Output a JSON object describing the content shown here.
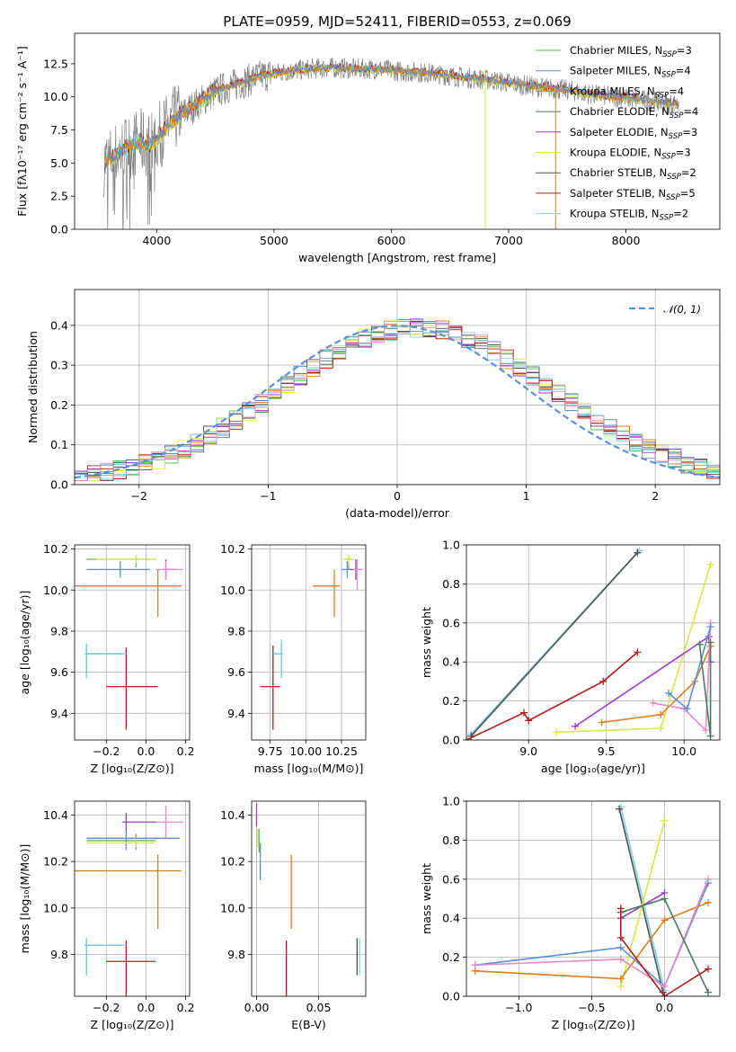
{
  "colors": {
    "Chabrier MILES": "#5cb85c",
    "Salpeter MILES": "#5b8fd6",
    "Kroupa MILES": "#e07b1a",
    "Chabrier ELODIE": "#4a7a60",
    "Salpeter ELODIE": "#9a3fc0",
    "Kroupa ELODIE": "#d8e64a",
    "Chabrier STELIB": "#505050",
    "Salpeter STELIB": "#b01e1e",
    "Kroupa STELIB": "#7fd2dc",
    "pink": "#e58ac6",
    "data": "#808080",
    "gauss": "#5b8fd6"
  },
  "chart_data": [
    {
      "id": "spectrum",
      "type": "line",
      "title": "PLATE=0959, MJD=52411, FIBERID=0553, z=0.069",
      "xlabel": "wavelength [Angstrom, rest frame]",
      "ylabel": "Flux [fλ10⁻¹⁷ erg cm⁻² s⁻¹ A⁻¹]",
      "xlim": [
        3300,
        8800
      ],
      "ylim": [
        0,
        14.8
      ],
      "xticks": [
        "4000",
        "5000",
        "6000",
        "7000",
        "8000"
      ],
      "yticks": [
        "0.0",
        "2.5",
        "5.0",
        "7.5",
        "10.0",
        "12.5"
      ],
      "legend": [
        {
          "label": "Chabrier MILES, N",
          "sub": "SSP",
          "tail": "=3"
        },
        {
          "label": "Salpeter MILES, N",
          "sub": "SSP",
          "tail": "=4"
        },
        {
          "label": "Kroupa MILES, N",
          "sub": "SSP",
          "tail": "=4"
        },
        {
          "label": "Chabrier ELODIE, N",
          "sub": "SSP",
          "tail": "=4"
        },
        {
          "label": "Salpeter ELODIE, N",
          "sub": "SSP",
          "tail": "=3"
        },
        {
          "label": "Kroupa ELODIE, N",
          "sub": "SSP",
          "tail": "=3"
        },
        {
          "label": "Chabrier STELIB, N",
          "sub": "SSP",
          "tail": "=2"
        },
        {
          "label": "Salpeter STELIB, N",
          "sub": "SSP",
          "tail": "=5"
        },
        {
          "label": "Kroupa STELIB, N",
          "sub": "SSP",
          "tail": "=2"
        }
      ],
      "continuum_x": [
        3550,
        3650,
        3750,
        3850,
        3950,
        4050,
        4150,
        4300,
        4500,
        4700,
        4900,
        5100,
        5300,
        5500,
        5700,
        5900,
        6100,
        6300,
        6500,
        6700,
        6900,
        7100,
        7300,
        7500,
        7700,
        7900,
        8100,
        8300,
        8450
      ],
      "continuum_y": [
        5.0,
        5.6,
        6.2,
        6.6,
        6.4,
        7.4,
        8.3,
        9.2,
        10.4,
        11.0,
        11.6,
        11.9,
        12.1,
        12.2,
        12.1,
        12.1,
        11.9,
        11.8,
        11.6,
        11.4,
        11.2,
        10.9,
        10.7,
        10.5,
        10.2,
        10.0,
        9.8,
        9.6,
        9.4
      ]
    },
    {
      "id": "residuals",
      "type": "histogram",
      "xlabel": "(data-model)/error",
      "ylabel": "Normed distribution",
      "xlim": [
        -2.5,
        2.5
      ],
      "ylim": [
        0,
        0.49
      ],
      "xticks": [
        "−2",
        "−1",
        "0",
        "1",
        "2"
      ],
      "yticks": [
        "0.0",
        "0.1",
        "0.2",
        "0.3",
        "0.4"
      ],
      "legend": "𝒩(0, 1)",
      "bin_width": 0.1,
      "bins_start": -2.5
    },
    {
      "id": "age-vs-Z",
      "type": "errorbar",
      "xlabel": "Z [log₁₀(Z/Z⊙)]",
      "ylabel": "age  [log₁₀(age/yr)]",
      "xlim": [
        -0.36,
        0.22
      ],
      "ylim": [
        9.27,
        10.22
      ],
      "xticks": [
        "−0.2",
        "0.0",
        "0.2"
      ],
      "yticks": [
        "9.4",
        "9.6",
        "9.8",
        "10.0",
        "10.2"
      ],
      "points": [
        {
          "c": "Chabrier MILES",
          "x": -0.05,
          "y": 10.15,
          "xe": [
            -0.3,
            0.05
          ],
          "ye": [
            10.11,
            10.17
          ]
        },
        {
          "c": "Salpeter MILES",
          "x": -0.13,
          "y": 10.1,
          "xe": [
            -0.3,
            0.02
          ],
          "ye": [
            10.06,
            10.14
          ]
        },
        {
          "c": "Kroupa MILES",
          "x": 0.06,
          "y": 10.02,
          "xe": [
            -0.36,
            0.18
          ],
          "ye": [
            9.87,
            10.1
          ]
        },
        {
          "c": "Chabrier ELODIE",
          "x": -0.3,
          "y": 9.69,
          "xe": [
            -0.3,
            -0.12
          ],
          "ye": [
            9.58,
            9.74
          ]
        },
        {
          "c": "Salpeter ELODIE",
          "x": 0.1,
          "y": 10.1,
          "xe": [
            0.08,
            0.15
          ],
          "ye": [
            10.05,
            10.15
          ]
        },
        {
          "c": "Kroupa ELODIE",
          "x": -0.05,
          "y": 10.15,
          "xe": [
            -0.25,
            0.05
          ],
          "ye": [
            10.13,
            10.17
          ]
        },
        {
          "c": "Salpeter STELIB",
          "x": -0.1,
          "y": 9.53,
          "xe": [
            -0.2,
            0.06
          ],
          "ye": [
            9.32,
            9.72
          ]
        },
        {
          "c": "Kroupa STELIB",
          "x": -0.3,
          "y": 9.69,
          "xe": [
            -0.31,
            -0.1
          ],
          "ye": [
            9.57,
            9.74
          ]
        },
        {
          "c": "pink",
          "x": 0.1,
          "y": 10.1,
          "xe": [
            0.05,
            0.19
          ],
          "ye": [
            10.05,
            10.14
          ]
        }
      ]
    },
    {
      "id": "age-vs-mass",
      "type": "errorbar",
      "xlabel": "mass [log₁₀(M/M⊙)]",
      "ylabel": "",
      "xlim": [
        9.62,
        10.42
      ],
      "ylim": [
        9.27,
        10.22
      ],
      "xticks": [
        "9.75",
        "10.00",
        "10.25"
      ],
      "yticks": [
        "9.4",
        "9.6",
        "9.8",
        "10.0",
        "10.2"
      ],
      "points": [
        {
          "c": "Chabrier MILES",
          "x": 10.3,
          "y": 10.15,
          "xe": [
            10.27,
            10.33
          ],
          "ye": [
            10.1,
            10.17
          ]
        },
        {
          "c": "Salpeter MILES",
          "x": 10.29,
          "y": 10.1,
          "xe": [
            10.25,
            10.32
          ],
          "ye": [
            10.06,
            10.14
          ]
        },
        {
          "c": "Kroupa MILES",
          "x": 10.2,
          "y": 10.02,
          "xe": [
            10.05,
            10.24
          ],
          "ye": [
            9.87,
            10.1
          ]
        },
        {
          "c": "Chabrier ELODIE",
          "x": 9.83,
          "y": 9.69,
          "xe": [
            9.77,
            9.84
          ],
          "ye": [
            9.57,
            9.74
          ]
        },
        {
          "c": "Salpeter ELODIE",
          "x": 10.35,
          "y": 10.1,
          "xe": [
            10.31,
            10.38
          ],
          "ye": [
            10.05,
            10.15
          ]
        },
        {
          "c": "Kroupa ELODIE",
          "x": 10.3,
          "y": 10.15,
          "xe": [
            10.27,
            10.33
          ],
          "ye": [
            10.12,
            10.17
          ]
        },
        {
          "c": "Salpeter STELIB",
          "x": 9.77,
          "y": 9.53,
          "xe": [
            9.68,
            9.82
          ],
          "ye": [
            9.32,
            9.73
          ]
        },
        {
          "c": "Kroupa STELIB",
          "x": 9.83,
          "y": 9.69,
          "xe": [
            9.77,
            9.84
          ],
          "ye": [
            9.57,
            9.76
          ]
        },
        {
          "c": "pink",
          "x": 10.36,
          "y": 10.1,
          "xe": [
            10.33,
            10.4
          ],
          "ye": [
            10.0,
            10.15
          ]
        }
      ]
    },
    {
      "id": "mass-vs-Z",
      "type": "errorbar",
      "xlabel": "Z [log₁₀(Z/Z⊙)]",
      "ylabel": "mass [log₁₀(M/M⊙)]",
      "xlim": [
        -0.36,
        0.22
      ],
      "ylim": [
        9.62,
        10.46
      ],
      "xticks": [
        "−0.2",
        "0.0",
        "0.2"
      ],
      "yticks": [
        "9.8",
        "10.0",
        "10.2",
        "10.4"
      ],
      "points": [
        {
          "c": "Chabrier MILES",
          "x": -0.05,
          "y": 10.29,
          "xe": [
            -0.3,
            0.05
          ],
          "ye": [
            10.25,
            10.32
          ]
        },
        {
          "c": "Salpeter MILES",
          "x": -0.1,
          "y": 10.3,
          "xe": [
            -0.3,
            0.17
          ],
          "ye": [
            10.25,
            10.33
          ]
        },
        {
          "c": "Kroupa MILES",
          "x": 0.06,
          "y": 10.16,
          "xe": [
            -0.36,
            0.18
          ],
          "ye": [
            9.91,
            10.23
          ]
        },
        {
          "c": "Chabrier ELODIE",
          "x": -0.3,
          "y": 9.84,
          "xe": [
            -0.3,
            -0.12
          ],
          "ye": [
            9.71,
            9.87
          ]
        },
        {
          "c": "Salpeter ELODIE",
          "x": -0.1,
          "y": 10.37,
          "xe": [
            -0.12,
            0.05
          ],
          "ye": [
            10.33,
            10.41
          ]
        },
        {
          "c": "Kroupa ELODIE",
          "x": -0.05,
          "y": 10.28,
          "xe": [
            -0.3,
            0.05
          ],
          "ye": [
            10.26,
            10.3
          ]
        },
        {
          "c": "Salpeter STELIB",
          "x": -0.1,
          "y": 9.77,
          "xe": [
            -0.2,
            0.05
          ],
          "ye": [
            9.62,
            9.86
          ]
        },
        {
          "c": "Kroupa STELIB",
          "x": -0.3,
          "y": 9.84,
          "xe": [
            -0.31,
            -0.1
          ],
          "ye": [
            9.71,
            9.87
          ]
        },
        {
          "c": "pink",
          "x": 0.1,
          "y": 10.37,
          "xe": [
            0.05,
            0.19
          ],
          "ye": [
            10.3,
            10.44
          ]
        }
      ]
    },
    {
      "id": "mass-vs-EBV",
      "type": "errorbar",
      "xlabel": "E(B-V)",
      "ylabel": "",
      "xlim": [
        -0.004,
        0.088
      ],
      "ylim": [
        9.62,
        10.46
      ],
      "xticks": [
        "0.00",
        "0.05"
      ],
      "yticks": [
        "9.8",
        "10.0",
        "10.2",
        "10.4"
      ],
      "points": [
        {
          "c": "Chabrier MILES",
          "x": 0.002,
          "y": 10.29,
          "xe": [
            0.002,
            0.002
          ],
          "ye": [
            10.24,
            10.34
          ]
        },
        {
          "c": "Salpeter MILES",
          "x": 0.003,
          "y": 10.2,
          "xe": [
            0.003,
            0.003
          ],
          "ye": [
            10.12,
            10.28
          ]
        },
        {
          "c": "Kroupa MILES",
          "x": 0.028,
          "y": 10.07,
          "xe": [
            0.028,
            0.028
          ],
          "ye": [
            9.91,
            10.23
          ]
        },
        {
          "c": "Salpeter ELODIE",
          "x": 0.0,
          "y": 10.4,
          "xe": [
            0.0,
            0.0
          ],
          "ye": [
            10.35,
            10.45
          ]
        },
        {
          "c": "Kroupa ELODIE",
          "x": 0.001,
          "y": 10.3,
          "xe": [
            0.001,
            0.001
          ],
          "ye": [
            10.26,
            10.34
          ]
        },
        {
          "c": "Salpeter STELIB",
          "x": 0.024,
          "y": 9.74,
          "xe": [
            0.024,
            0.024
          ],
          "ye": [
            9.62,
            9.86
          ]
        },
        {
          "c": "Kroupa STELIB",
          "x": 0.083,
          "y": 9.79,
          "xe": [
            0.083,
            0.083
          ],
          "ye": [
            9.71,
            9.87
          ]
        },
        {
          "c": "Chabrier STELIB",
          "x": 0.081,
          "y": 9.79,
          "xe": [
            0.081,
            0.081
          ],
          "ye": [
            9.71,
            9.87
          ]
        }
      ]
    },
    {
      "id": "weight-vs-age",
      "type": "line",
      "xlabel": "age  [log₁₀(age/yr)]",
      "ylabel": "mass weight",
      "xlim": [
        8.6,
        10.23
      ],
      "ylim": [
        0.0,
        1.0
      ],
      "xticks": [
        "9.0",
        "9.5",
        "10.0"
      ],
      "yticks": [
        "0.0",
        "0.2",
        "0.4",
        "0.6",
        "0.8",
        "1.0"
      ],
      "series": [
        {
          "c": "Kroupa STELIB",
          "x": [
            8.63,
            9.71
          ],
          "y": [
            0.03,
            0.97
          ]
        },
        {
          "c": "Chabrier STELIB",
          "x": [
            8.63,
            9.7
          ],
          "y": [
            0.02,
            0.96
          ]
        },
        {
          "c": "Salpeter STELIB",
          "x": [
            8.6,
            8.97,
            9.0,
            9.48,
            9.7
          ],
          "y": [
            0.0,
            0.14,
            0.1,
            0.3,
            0.45
          ]
        },
        {
          "c": "Kroupa ELODIE",
          "x": [
            9.18,
            9.85,
            10.17
          ],
          "y": [
            0.04,
            0.06,
            0.9
          ]
        },
        {
          "c": "Salpeter ELODIE",
          "x": [
            9.3,
            10.16,
            10.17
          ],
          "y": [
            0.07,
            0.53,
            0.4
          ]
        },
        {
          "c": "Kroupa MILES",
          "x": [
            9.47,
            9.85,
            10.07,
            10.17
          ],
          "y": [
            0.09,
            0.13,
            0.3,
            0.48
          ]
        },
        {
          "c": "pink",
          "x": [
            9.8,
            10.0,
            10.14,
            10.17
          ],
          "y": [
            0.19,
            0.16,
            0.05,
            0.6
          ]
        },
        {
          "c": "Salpeter MILES",
          "x": [
            9.9,
            10.02,
            10.17
          ],
          "y": [
            0.24,
            0.16,
            0.58
          ]
        },
        {
          "c": "Chabrier ELODIE",
          "x": [
            10.1,
            10.17,
            10.17
          ],
          "y": [
            0.49,
            0.02,
            0.5
          ]
        }
      ]
    },
    {
      "id": "weight-vs-Z",
      "type": "line",
      "xlabel": "Z [log₁₀(Z/Z⊙)]",
      "ylabel": "mass weight",
      "xlim": [
        -1.36,
        0.38
      ],
      "ylim": [
        0.0,
        1.0
      ],
      "xticks": [
        "−1.0",
        "−0.5",
        "0.0"
      ],
      "yticks": [
        "0.0",
        "0.2",
        "0.4",
        "0.6",
        "0.8",
        "1.0"
      ],
      "series": [
        {
          "c": "Kroupa STELIB",
          "x": [
            -0.3,
            0.0
          ],
          "y": [
            0.97,
            0.03
          ]
        },
        {
          "c": "Chabrier STELIB",
          "x": [
            -0.31,
            -0.01
          ],
          "y": [
            0.96,
            0.02
          ]
        },
        {
          "c": "Kroupa ELODIE",
          "x": [
            -0.3,
            0.0
          ],
          "y": [
            0.05,
            0.9
          ]
        },
        {
          "c": "Salpeter MILES",
          "x": [
            -1.3,
            -0.3,
            0.0,
            0.3
          ],
          "y": [
            0.16,
            0.25,
            0.05,
            0.58
          ]
        },
        {
          "c": "Kroupa MILES",
          "x": [
            -1.3,
            -0.3,
            0.0,
            0.3
          ],
          "y": [
            0.13,
            0.09,
            0.39,
            0.48
          ]
        },
        {
          "c": "pink",
          "x": [
            -1.3,
            -0.3,
            0.0,
            0.3
          ],
          "y": [
            0.16,
            0.19,
            0.05,
            0.6
          ]
        },
        {
          "c": "Salpeter ELODIE",
          "x": [
            -0.3,
            0.0
          ],
          "y": [
            0.4,
            0.53
          ]
        },
        {
          "c": "Chabrier ELODIE",
          "x": [
            -0.3,
            0.0,
            0.3
          ],
          "y": [
            0.43,
            0.5,
            0.02
          ]
        },
        {
          "c": "Salpeter STELIB",
          "x": [
            -0.3,
            -0.3,
            0.0,
            0.3
          ],
          "y": [
            0.45,
            0.3,
            0.0,
            0.14
          ]
        }
      ]
    }
  ]
}
